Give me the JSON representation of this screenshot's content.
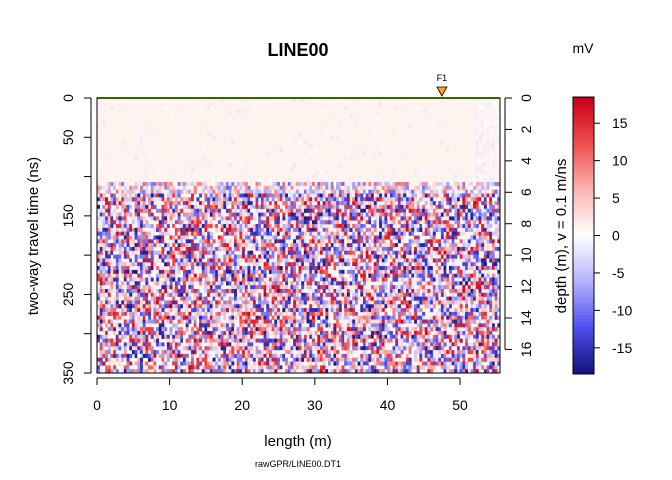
{
  "chart_data": {
    "type": "heatmap",
    "title": "LINE00",
    "subtitle": "rawGPR/LINE00.DT1",
    "xlabel": "length (m)",
    "ylabel": "two-way travel time (ns)",
    "y2label": "depth (m),   v = 0.1 m/ns",
    "xlim": [
      0,
      55.5
    ],
    "ylim": [
      0,
      350
    ],
    "y2lim": [
      0,
      17.5
    ],
    "x_ticks": [
      "0",
      "10",
      "20",
      "30",
      "40",
      "50"
    ],
    "x_tick_values": [
      0,
      10,
      20,
      30,
      40,
      50
    ],
    "y_ticks": [
      "0",
      "50",
      "150",
      "250",
      "350"
    ],
    "y_tick_values": [
      0,
      50,
      150,
      250,
      350
    ],
    "y_minor_tick_values": [
      100,
      200,
      300
    ],
    "y2_ticks": [
      "0",
      "2",
      "4",
      "6",
      "8",
      "10",
      "12",
      "14",
      "16"
    ],
    "y2_tick_values": [
      0,
      2,
      4,
      6,
      8,
      10,
      12,
      14,
      16
    ],
    "marker": {
      "label": "F1",
      "x": 47.5,
      "color": "#ffa500"
    },
    "surface_line_color": "#66cc00",
    "colorbar": {
      "unit": "mV",
      "range": [
        -18.5,
        18.5
      ],
      "ticks": [
        "15",
        "10",
        "5",
        "0",
        "-5",
        "-10",
        "-15"
      ],
      "tick_values": [
        15,
        10,
        5,
        0,
        -5,
        -10,
        -15
      ],
      "palette": [
        "#c8001a",
        "#f05050",
        "#fbb4b4",
        "#ffffff",
        "#b4b4fb",
        "#5050f0",
        "#14147f"
      ]
    },
    "grid": false,
    "legend": "colorbar-right"
  }
}
